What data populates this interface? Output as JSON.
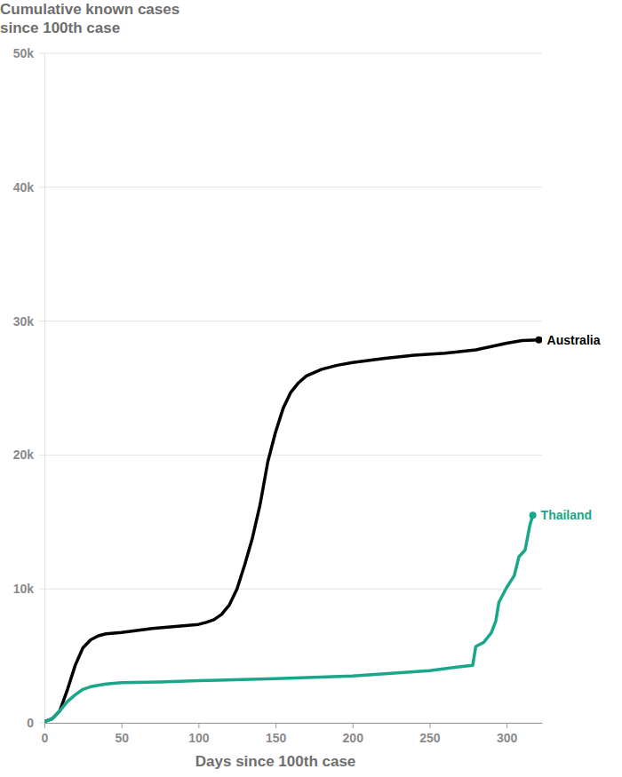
{
  "chart_data": {
    "type": "line",
    "y_label": "Cumulative known cases since 100th case",
    "x_label": "Days since 100th case",
    "xlim": [
      0,
      323
    ],
    "xticks": [
      0,
      50,
      100,
      150,
      200,
      250,
      300
    ],
    "ylim": [
      0,
      50000
    ],
    "yticks": [
      0,
      {
        "value": 10000,
        "label": "10k"
      },
      {
        "value": 20000,
        "label": "20k"
      },
      {
        "value": 30000,
        "label": "30k"
      },
      {
        "value": 40000,
        "label": "40k"
      },
      {
        "value": 50000,
        "label": "50k"
      }
    ],
    "grid": true,
    "series": [
      {
        "name": "Australia",
        "color": "#000000",
        "x": [
          0,
          5,
          10,
          15,
          20,
          25,
          30,
          35,
          40,
          50,
          60,
          70,
          80,
          90,
          100,
          105,
          110,
          115,
          120,
          125,
          130,
          135,
          140,
          145,
          150,
          155,
          160,
          165,
          170,
          180,
          190,
          200,
          220,
          240,
          260,
          280,
          290,
          300,
          310,
          321
        ],
        "values": [
          100,
          300,
          900,
          2500,
          4300,
          5600,
          6200,
          6500,
          6650,
          6750,
          6900,
          7050,
          7150,
          7250,
          7350,
          7500,
          7700,
          8100,
          8800,
          10000,
          11800,
          13800,
          16300,
          19500,
          21700,
          23500,
          24700,
          25400,
          25900,
          26400,
          26700,
          26900,
          27200,
          27450,
          27600,
          27850,
          28100,
          28350,
          28550,
          28600
        ]
      },
      {
        "name": "Thailand",
        "color": "#1aa68a",
        "x": [
          0,
          5,
          10,
          15,
          20,
          25,
          30,
          40,
          50,
          75,
          100,
          150,
          200,
          250,
          270,
          278,
          280,
          285,
          290,
          293,
          295,
          300,
          305,
          308,
          312,
          315,
          317
        ],
        "values": [
          100,
          300,
          900,
          1600,
          2100,
          2500,
          2700,
          2900,
          3000,
          3050,
          3150,
          3300,
          3500,
          3900,
          4200,
          4300,
          5700,
          6000,
          6700,
          7600,
          9000,
          10100,
          11000,
          12400,
          12900,
          14700,
          15500
        ]
      }
    ]
  }
}
